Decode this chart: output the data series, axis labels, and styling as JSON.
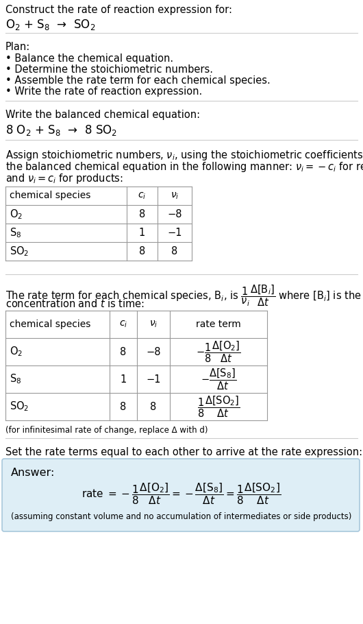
{
  "title_text": "Construct the rate of reaction expression for:",
  "reaction_unbalanced": "O$_2$ + S$_8$  →  SO$_2$",
  "plan_header": "Plan:",
  "plan_items": [
    "• Balance the chemical equation.",
    "• Determine the stoichiometric numbers.",
    "• Assemble the rate term for each chemical species.",
    "• Write the rate of reaction expression."
  ],
  "balanced_header": "Write the balanced chemical equation:",
  "reaction_balanced": "8 O$_2$ + S$_8$  →  8 SO$_2$",
  "stoich_intro": "Assign stoichiometric numbers, $\\nu_i$, using the stoichiometric coefficients, $c_i$, from\nthe balanced chemical equation in the following manner: $\\nu_i = -c_i$ for reactants\nand $\\nu_i = c_i$ for products:",
  "table1_headers": [
    "chemical species",
    "$c_i$",
    "$\\nu_i$"
  ],
  "table1_rows": [
    [
      "O$_2$",
      "8",
      "−8"
    ],
    [
      "S$_8$",
      "1",
      "−1"
    ],
    [
      "SO$_2$",
      "8",
      "8"
    ]
  ],
  "rate_intro_part1": "The rate term for each chemical species, B$_i$, is $\\dfrac{1}{\\nu_i}\\dfrac{\\Delta[\\mathrm{B}_i]}{\\Delta t}$ where [B$_i$] is the amount",
  "rate_intro_part2": "concentration and $t$ is time:",
  "table2_headers": [
    "chemical species",
    "$c_i$",
    "$\\nu_i$",
    "rate term"
  ],
  "table2_rows": [
    [
      "O$_2$",
      "8",
      "−8",
      "$-\\dfrac{1}{8}\\dfrac{\\Delta[\\mathrm{O_2}]}{\\Delta t}$"
    ],
    [
      "S$_8$",
      "1",
      "−1",
      "$-\\dfrac{\\Delta[\\mathrm{S_8}]}{\\Delta t}$"
    ],
    [
      "SO$_2$",
      "8",
      "8",
      "$\\dfrac{1}{8}\\dfrac{\\Delta[\\mathrm{SO_2}]}{\\Delta t}$"
    ]
  ],
  "infinitesimal_note": "(for infinitesimal rate of change, replace Δ with d)",
  "set_equal_text": "Set the rate terms equal to each other to arrive at the rate expression:",
  "answer_label": "Answer:",
  "answer_rate": "rate $= -\\dfrac{1}{8}\\dfrac{\\Delta[\\mathrm{O_2}]}{\\Delta t} = -\\dfrac{\\Delta[\\mathrm{S_8}]}{\\Delta t} = \\dfrac{1}{8}\\dfrac{\\Delta[\\mathrm{SO_2}]}{\\Delta t}$",
  "assuming_note": "(assuming constant volume and no accumulation of intermediates or side products)",
  "bg_color": "#ffffff",
  "answer_box_color": "#deeef6",
  "answer_box_edge": "#a8c8dc",
  "table_line_color": "#999999",
  "text_color": "#000000",
  "sep_line_color": "#cccccc",
  "font_size": 10.5,
  "small_font_size": 8.5,
  "title_font_size": 10.5,
  "eq_font_size": 12
}
